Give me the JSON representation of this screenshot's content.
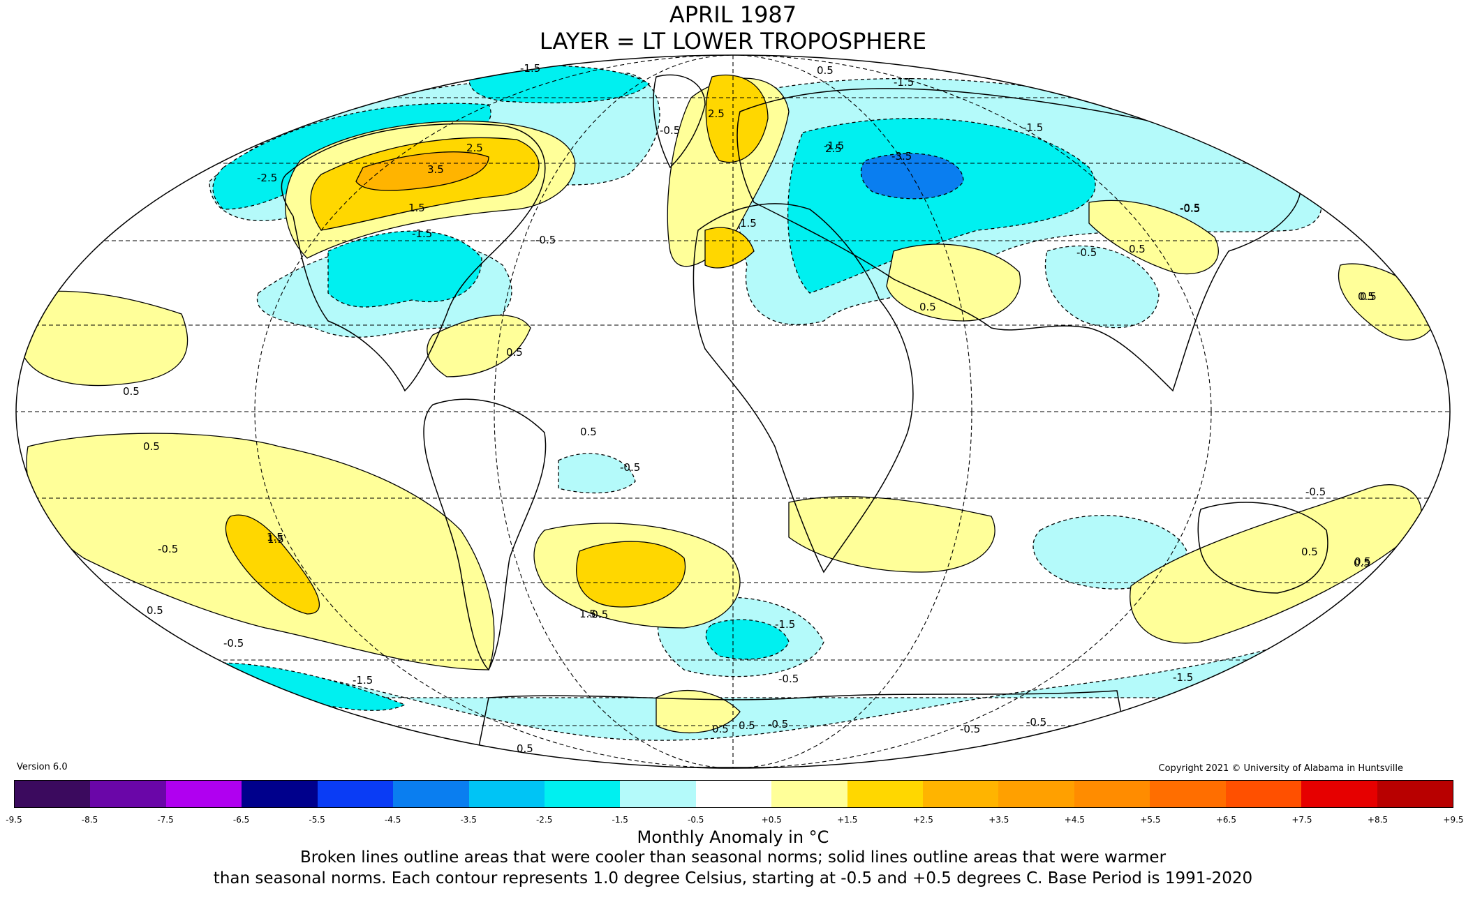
{
  "title": "APRIL 1987",
  "subtitle": "LAYER = LT LOWER TROPOSPHERE",
  "version": "Version 6.0",
  "copyright": "Copyright 2021 © University of Alabama in Huntsville",
  "colorbar": {
    "tick_labels": [
      "-9.5",
      "-8.5",
      "-7.5",
      "-6.5",
      "-5.5",
      "-4.5",
      "-3.5",
      "-2.5",
      "-1.5",
      "-0.5",
      "+0.5",
      "+1.5",
      "+2.5",
      "+3.5",
      "+4.5",
      "+5.5",
      "+6.5",
      "+7.5",
      "+8.5",
      "+9.5"
    ],
    "colors": [
      "#3b0a5e",
      "#6a06a8",
      "#b000f0",
      "#00008c",
      "#0a3cf5",
      "#0a7ef0",
      "#00c4f5",
      "#00f0f0",
      "#b4fafa",
      "#ffffff",
      "#ffff99",
      "#ffd700",
      "#ffb400",
      "#ffa000",
      "#ff8c00",
      "#ff6e00",
      "#ff5000",
      "#e60000",
      "#b80000"
    ],
    "unit_label": "Monthly Anomaly in °C"
  },
  "notes": [
    "Broken lines outline areas that were cooler than seasonal norms; solid lines outline areas that were warmer",
    "than seasonal norms. Each contour represents 1.0 degree Celsius, starting at -0.5 and +0.5 degrees C. Base Period is 1991-2020"
  ],
  "contour_labels": [
    "-1.5",
    "0.5",
    "-1.5",
    "2.5",
    "3.5",
    "1.5",
    "2.5",
    "-0.5",
    "1.5",
    "-1.5",
    "-0.5",
    "-2.5",
    "-1.5",
    "-1.5",
    "-0.5",
    "2.5",
    "-3.5",
    "-0.5",
    "-0.5",
    "0.5",
    "0.5",
    "0.5",
    "0.5",
    "0.5",
    "0.5",
    "-0.5",
    "-0.5",
    "1.5",
    "-0.5",
    "0.5",
    "0.5",
    "-0.5",
    "0.5",
    "1.5",
    "-1.5",
    "-0.5",
    "-1.5",
    "-1.5",
    "0.5",
    "-0.5",
    "-0.5",
    "0.5",
    "-0.5",
    "-0.5",
    "0.5",
    "0.5",
    "1.5",
    "0.5",
    "0.5"
  ]
}
